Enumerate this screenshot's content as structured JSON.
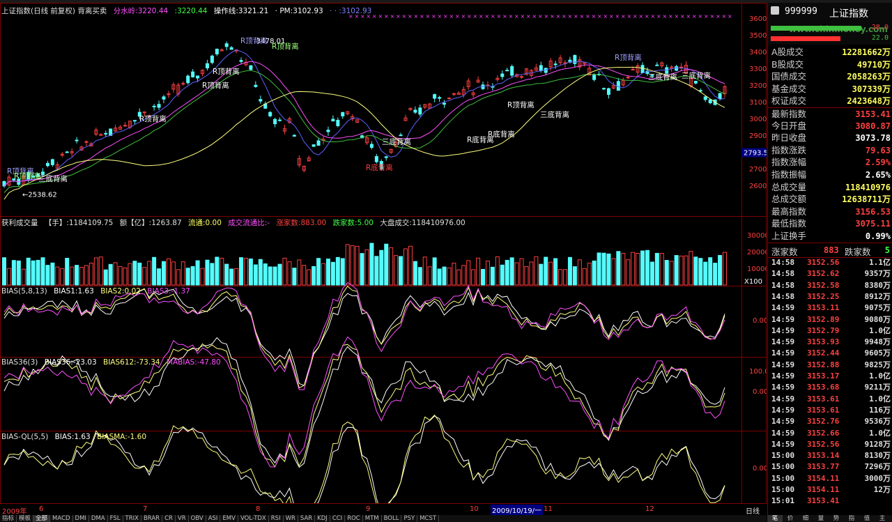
{
  "colors": {
    "up": "#ff4040",
    "down": "#54fcfc",
    "ma1": "#ffffff",
    "ma2": "#ff50ff",
    "ma3": "#ffff80",
    "grid": "#800000"
  },
  "main": {
    "title": "上证指数(日线 前复权) 背离买卖",
    "line_a": "分水岭:3220.44",
    "line_b": ":3220.44",
    "line_c": "操作线:3321.21",
    "line_d": "· PM:3102.93",
    "line_e": "· · :3102.93",
    "price_axis": [
      "3600",
      "3500",
      "3400",
      "3300",
      "3200",
      "3100",
      "3000",
      "2900",
      "2800",
      "2700",
      "2600"
    ],
    "current_price": "2793.5",
    "low_label": "←2538.62",
    "high_label": "3478.01",
    "signals": [
      {
        "text": "R顶背离",
        "color": "#a0a0ff"
      },
      {
        "text": "R顶背离",
        "color": "#a0ff80"
      },
      {
        "text": "三底背离",
        "color": "#ffffff"
      },
      {
        "text": "R顶背离",
        "color": "#ffffff"
      },
      {
        "text": "R顶背离",
        "color": "#ffffff"
      },
      {
        "text": "R顶背离",
        "color": "#ffffff"
      },
      {
        "text": "R顶背离",
        "color": "#a0a0ff"
      },
      {
        "text": "R顶背离",
        "color": "#a0ff80"
      },
      {
        "text": "三底背离",
        "color": "#ffffff"
      },
      {
        "text": "R底背离",
        "color": "#ff4040"
      },
      {
        "text": "R底背离",
        "color": "#ffffff"
      },
      {
        "text": "R底背离",
        "color": "#ffffff"
      },
      {
        "text": "R顶背离",
        "color": "#ffffff"
      },
      {
        "text": "三底背离",
        "color": "#ffffff"
      },
      {
        "text": "R顶背离",
        "color": "#a0a0ff"
      },
      {
        "text": "三底背离",
        "color": "#ffffff"
      },
      {
        "text": "三底背离",
        "color": "#ffffff"
      }
    ]
  },
  "volume": {
    "title": "获利成交量",
    "hand": "【手】:1184109.75",
    "amount": "额【亿】:1263.87",
    "flow": "流通:0.00",
    "flow_ratio": "成交流通比:-",
    "up_count": "涨家数:883.00",
    "down_count": "跌家数:5.00",
    "market": "大盘成交:118410976.00",
    "axis": [
      "30000",
      "20000",
      "10000"
    ],
    "unit": "X100"
  },
  "bias1": {
    "title": "BIAS(5,8,13)",
    "b1": "BIAS1:1.63",
    "b2": "BIAS2:0.02",
    "b3": "BIAS3:-1.37",
    "axis": "0.00"
  },
  "bias2": {
    "title": "BIAS36(3)",
    "b1": "BIAS36:-23.03",
    "b2": "BIAS612:-73.34",
    "b3": "MABIAS:-47.80",
    "axis_top": "100.0",
    "axis": "0.00"
  },
  "bias3": {
    "title": "BIAS-QL(5,5)",
    "b1": "BIAS:1.63",
    "b2": "BIASMA:-1.60",
    "axis": "0.00"
  },
  "time_axis": {
    "year": "2009年",
    "months": [
      "6",
      "7",
      "8",
      "9",
      "10",
      "11",
      "12"
    ],
    "cursor": "2009/10/19/一",
    "mode": "日线"
  },
  "right_panel": {
    "code": "999999",
    "name": "上证指数",
    "watermark": "www.chinmoney.com",
    "bar_a": "28.0",
    "bar_b": "22.0",
    "stats": [
      {
        "label": "A股成交",
        "value": "12281662万",
        "color": "#ffff60"
      },
      {
        "label": "B股成交",
        "value": "49710万",
        "color": "#ffff60"
      },
      {
        "label": "国债成交",
        "value": "2058263万",
        "color": "#ffff60"
      },
      {
        "label": "基金成交",
        "value": "307339万",
        "color": "#ffff60"
      },
      {
        "label": "权证成交",
        "value": "2423648万",
        "color": "#ffff60"
      },
      {
        "label": "最新指数",
        "value": "3153.41",
        "color": "#ff4040"
      },
      {
        "label": "今日开盘",
        "value": "3080.87",
        "color": "#ff4040"
      },
      {
        "label": "昨日收盘",
        "value": "3073.78",
        "color": "#ffffff"
      },
      {
        "label": "指数涨跌",
        "value": "79.63",
        "color": "#ff4040"
      },
      {
        "label": "指数涨幅",
        "value": "2.59%",
        "color": "#ff4040"
      },
      {
        "label": "指数振幅",
        "value": "2.65%",
        "color": "#ffffff"
      },
      {
        "label": "总成交量",
        "value": "118410976",
        "color": "#ffff60"
      },
      {
        "label": "总成交额",
        "value": "12638711万",
        "color": "#ffff60"
      },
      {
        "label": "最高指数",
        "value": "3156.53",
        "color": "#ff4040"
      },
      {
        "label": "最低指数",
        "value": "3075.11",
        "color": "#ff4040"
      },
      {
        "label": "上证换手",
        "value": "0.99%",
        "color": "#ffffff"
      }
    ],
    "updown": {
      "up_label": "涨家数",
      "up_value": "883",
      "down_label": "跌家数",
      "down_value": "5"
    },
    "ticks": [
      {
        "time": "14:58",
        "price": "3152.56",
        "vol": "1.1亿"
      },
      {
        "time": "14:58",
        "price": "3152.62",
        "vol": "9357万"
      },
      {
        "time": "14:58",
        "price": "3152.58",
        "vol": "8380万"
      },
      {
        "time": "14:58",
        "price": "3152.25",
        "vol": "8912万"
      },
      {
        "time": "14:59",
        "price": "3153.11",
        "vol": "9075万"
      },
      {
        "time": "14:59",
        "price": "3152.89",
        "vol": "9080万"
      },
      {
        "time": "14:59",
        "price": "3152.79",
        "vol": "1.0亿"
      },
      {
        "time": "14:59",
        "price": "3153.93",
        "vol": "9948万"
      },
      {
        "time": "14:59",
        "price": "3152.44",
        "vol": "9605万"
      },
      {
        "time": "14:59",
        "price": "3152.88",
        "vol": "9825万"
      },
      {
        "time": "14:59",
        "price": "3153.17",
        "vol": "1.0亿"
      },
      {
        "time": "14:59",
        "price": "3153.68",
        "vol": "9211万"
      },
      {
        "time": "14:59",
        "price": "3153.61",
        "vol": "1.0亿"
      },
      {
        "time": "14:59",
        "price": "3153.61",
        "vol": "116万"
      },
      {
        "time": "14:59",
        "price": "3152.76",
        "vol": "9536万"
      },
      {
        "time": "14:59",
        "price": "3152.66",
        "vol": "1.0亿"
      },
      {
        "time": "14:59",
        "price": "3152.56",
        "vol": "9128万"
      },
      {
        "time": "15:00",
        "price": "3153.14",
        "vol": "8130万"
      },
      {
        "time": "15:00",
        "price": "3153.77",
        "vol": "7296万"
      },
      {
        "time": "15:00",
        "price": "3154.11",
        "vol": "3000万"
      },
      {
        "time": "15:00",
        "price": "3154.11",
        "vol": "12万"
      },
      {
        "time": "15:01",
        "price": "3153.41",
        "vol": ""
      }
    ]
  },
  "bottom_tabs": [
    "指标",
    "模板",
    "全部",
    "MACD",
    "DMI",
    "DMA",
    "FSL",
    "TRIX",
    "BRAR",
    "CR",
    "VR",
    "OBV",
    "ASI",
    "EMV",
    "VOL-TDX",
    "RSI",
    "WR",
    "SAR",
    "KDJ",
    "CCI",
    "ROC",
    "MTM",
    "BOLL",
    "PSY",
    "MCST"
  ],
  "right_tabs": [
    "笔",
    "价",
    "细",
    "量",
    "势",
    "指",
    "值",
    "主"
  ]
}
